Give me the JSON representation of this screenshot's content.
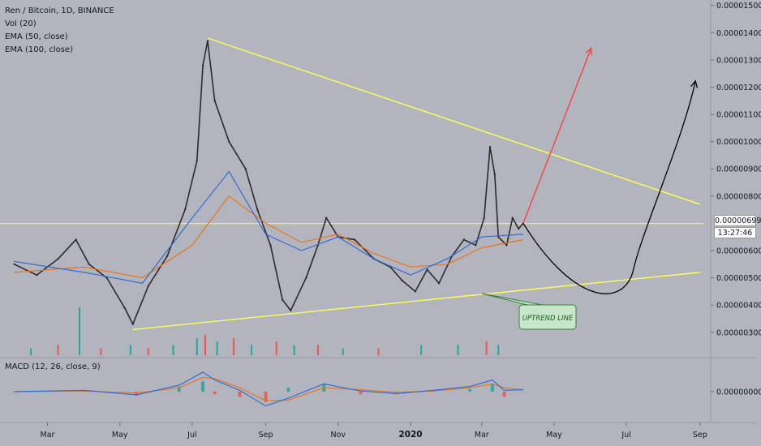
{
  "title": "Ren / Bitcoin, 1D, BINANCE",
  "indicators": [
    "Vol (20)",
    "EMA (50, close)",
    "EMA (100, close)"
  ],
  "macd_label": "MACD (12, 26, close, 9)",
  "annotation": "UPTREND LINE",
  "last_price": "0.00000699",
  "countdown": "13:27:46",
  "macd_axis_label": "0.00000000",
  "colors": {
    "background": "#b2b5be",
    "trendline": "#ffff55",
    "ema50": "#3a6bd1",
    "ema100": "#e8741c",
    "up_arrow": "#ff3b3b",
    "curve_arrow": "#000000",
    "candle": "#2b2b2b",
    "volume_up": "#26a69a",
    "volume_down": "#ef5350"
  },
  "chart_data": {
    "type": "line",
    "title": "Ren / Bitcoin, 1D, BINANCE",
    "xlabel": "",
    "ylabel": "",
    "x_ticks": [
      "Mar",
      "May",
      "Jul",
      "Sep",
      "Nov",
      "2020",
      "Mar",
      "May",
      "Jul",
      "Sep"
    ],
    "y_ticks": [
      "0.00001500",
      "0.00001400",
      "0.00001300",
      "0.00001200",
      "0.00001100",
      "0.00001000",
      "0.00000900",
      "0.00000800",
      "0.00000600",
      "0.00000500",
      "0.00000400",
      "0.00000300"
    ],
    "ylim": [
      2.1e-06,
      1.52e-05
    ],
    "grid": false,
    "price_series": {
      "name": "Ren / Bitcoin",
      "x": [
        "2019-02-01",
        "2019-02-20",
        "2019-03-10",
        "2019-03-25",
        "2019-04-05",
        "2019-04-20",
        "2019-05-05",
        "2019-05-12",
        "2019-05-25",
        "2019-06-10",
        "2019-06-25",
        "2019-07-05",
        "2019-07-10",
        "2019-07-14",
        "2019-07-20",
        "2019-08-01",
        "2019-08-15",
        "2019-08-25",
        "2019-09-05",
        "2019-09-15",
        "2019-09-22",
        "2019-10-05",
        "2019-10-15",
        "2019-10-22",
        "2019-11-01",
        "2019-11-15",
        "2019-12-01",
        "2019-12-15",
        "2019-12-25",
        "2020-01-05",
        "2020-01-15",
        "2020-01-25",
        "2020-02-05",
        "2020-02-15",
        "2020-02-25",
        "2020-03-03",
        "2020-03-08",
        "2020-03-12",
        "2020-03-15",
        "2020-03-22",
        "2020-03-27",
        "2020-04-01",
        "2020-04-05"
      ],
      "y": [
        5.5e-06,
        5.1e-06,
        5.7e-06,
        6.4e-06,
        5.5e-06,
        5e-06,
        3.9e-06,
        3.3e-06,
        4.7e-06,
        5.8e-06,
        7.5e-06,
        9.3e-06,
        1.28e-05,
        1.37e-05,
        1.15e-05,
        1e-05,
        9e-06,
        7.5e-06,
        6.2e-06,
        4.2e-06,
        3.8e-06,
        5e-06,
        6.2e-06,
        7.2e-06,
        6.5e-06,
        6.4e-06,
        5.7e-06,
        5.4e-06,
        4.9e-06,
        4.5e-06,
        5.3e-06,
        4.8e-06,
        5.8e-06,
        6.4e-06,
        6.2e-06,
        7.2e-06,
        9.8e-06,
        8.8e-06,
        6.5e-06,
        6.2e-06,
        7.2e-06,
        6.8e-06,
        7e-06
      ]
    },
    "ema50": {
      "name": "EMA (50, close)",
      "x": [
        "2019-02-01",
        "2019-04-01",
        "2019-05-20",
        "2019-07-01",
        "2019-08-01",
        "2019-09-01",
        "2019-10-01",
        "2019-11-01",
        "2019-12-01",
        "2020-01-01",
        "2020-02-01",
        "2020-03-01",
        "2020-04-05"
      ],
      "y": [
        5.6e-06,
        5.2e-06,
        4.8e-06,
        7.2e-06,
        8.9e-06,
        6.6e-06,
        6e-06,
        6.5e-06,
        5.7e-06,
        5.1e-06,
        5.7e-06,
        6.5e-06,
        6.6e-06
      ]
    },
    "ema100": {
      "name": "EMA (100, close)",
      "x": [
        "2019-02-01",
        "2019-04-01",
        "2019-05-20",
        "2019-07-01",
        "2019-08-01",
        "2019-09-01",
        "2019-10-01",
        "2019-11-01",
        "2019-12-01",
        "2020-01-01",
        "2020-02-01",
        "2020-03-01",
        "2020-04-05"
      ],
      "y": [
        5.2e-06,
        5.4e-06,
        5e-06,
        6.2e-06,
        8e-06,
        7e-06,
        6.3e-06,
        6.6e-06,
        5.9e-06,
        5.4e-06,
        5.5e-06,
        6.1e-06,
        6.4e-06
      ]
    },
    "trendlines": [
      {
        "name": "upper",
        "from": {
          "x": "2019-07-14",
          "y": 1.38e-05
        },
        "to": {
          "x": "2020-09-01",
          "y": 7.7e-06
        }
      },
      {
        "name": "lower",
        "from": {
          "x": "2019-05-12",
          "y": 3.1e-06
        },
        "to": {
          "x": "2020-09-01",
          "y": 5.2e-06
        }
      },
      {
        "name": "current-price",
        "from": {
          "x": "2019-01-20",
          "y": 6.99e-06
        },
        "to": {
          "x": "2020-09-05",
          "y": 6.99e-06
        }
      }
    ],
    "projections": [
      {
        "name": "red-arrow",
        "points": [
          {
            "x": "2020-04-05",
            "y": 7e-06
          },
          {
            "x": "2020-06-01",
            "y": 1.34e-05
          }
        ]
      },
      {
        "name": "curve-arrow",
        "points": [
          {
            "x": "2020-04-05",
            "y": 7e-06
          },
          {
            "x": "2020-05-20",
            "y": 5.2e-06
          },
          {
            "x": "2020-06-30",
            "y": 5.3e-06
          },
          {
            "x": "2020-08-28",
            "y": 1.22e-05
          }
        ]
      }
    ],
    "volume": [
      {
        "x": "2019-02-15",
        "v": 2,
        "up": true
      },
      {
        "x": "2019-03-10",
        "v": 3,
        "up": false
      },
      {
        "x": "2019-03-28",
        "v": 14,
        "up": true
      },
      {
        "x": "2019-04-15",
        "v": 2,
        "up": false
      },
      {
        "x": "2019-05-10",
        "v": 3,
        "up": true
      },
      {
        "x": "2019-05-25",
        "v": 2,
        "up": false
      },
      {
        "x": "2019-06-15",
        "v": 3,
        "up": true
      },
      {
        "x": "2019-07-05",
        "v": 5,
        "up": true
      },
      {
        "x": "2019-07-12",
        "v": 6,
        "up": false
      },
      {
        "x": "2019-07-22",
        "v": 4,
        "up": true
      },
      {
        "x": "2019-08-05",
        "v": 5,
        "up": false
      },
      {
        "x": "2019-08-20",
        "v": 3,
        "up": true
      },
      {
        "x": "2019-09-10",
        "v": 4,
        "up": false
      },
      {
        "x": "2019-09-25",
        "v": 3,
        "up": true
      },
      {
        "x": "2019-10-15",
        "v": 3,
        "up": false
      },
      {
        "x": "2019-11-05",
        "v": 2,
        "up": true
      },
      {
        "x": "2019-12-05",
        "v": 2,
        "up": false
      },
      {
        "x": "2020-01-10",
        "v": 3,
        "up": true
      },
      {
        "x": "2020-02-10",
        "v": 3,
        "up": true
      },
      {
        "x": "2020-03-05",
        "v": 4,
        "up": false
      },
      {
        "x": "2020-03-15",
        "v": 3,
        "up": true
      }
    ],
    "macd": {
      "name": "MACD (12, 26, close, 9)",
      "x": [
        "2019-02-01",
        "2019-04-01",
        "2019-05-15",
        "2019-06-20",
        "2019-07-10",
        "2019-07-20",
        "2019-08-10",
        "2019-09-01",
        "2019-09-20",
        "2019-10-20",
        "2019-11-20",
        "2019-12-20",
        "2020-01-20",
        "2020-02-20",
        "2020-03-10",
        "2020-03-20",
        "2020-04-05"
      ],
      "macd_line": [
        0.0,
        0.2,
        -0.5,
        1.0,
        3.0,
        1.8,
        0.2,
        -2.2,
        -1.0,
        1.2,
        0.1,
        -0.3,
        0.2,
        0.8,
        1.8,
        0.2,
        0.3
      ],
      "signal_line": [
        0.0,
        0.1,
        -0.2,
        0.6,
        2.2,
        2.0,
        0.6,
        -1.4,
        -1.3,
        0.6,
        0.3,
        -0.1,
        0.1,
        0.6,
        1.2,
        0.6,
        0.3
      ]
    }
  }
}
